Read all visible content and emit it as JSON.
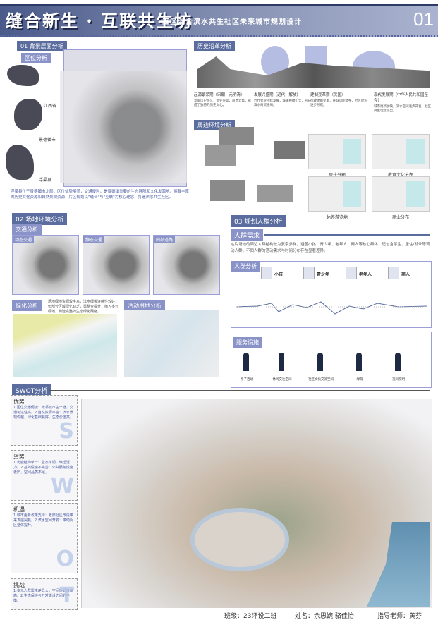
{
  "header": {
    "title": "缝合新生 · 互联共生坊",
    "subtitle": "五区混合滨水共生社区未来城市规划设计",
    "page_number": "01"
  },
  "section1": {
    "label": "01 背景层面分析",
    "location_label": "区位分析",
    "places": [
      "江西省",
      "景德镇市",
      "浮梁县"
    ],
    "description": "浮梁县位于景德镇市北部，区位优势明显，交通便利，是景德镇重要的生态屏障和文化发源地，拥有丰富的历史文化资源和自然景观资源，片区规划以\"缝合\"与\"互联\"为核心理念，打造滨水共生社区。"
  },
  "history": {
    "label": "历史沿革分析",
    "eras": [
      {
        "title": "起源繁荣期（宋朝—元明清）",
        "text": "浮梁历史悠久，瓷业兴盛，商贾云集，形成了独特的历史文化。"
      },
      {
        "title": "发展兴盛期（近代—解放）",
        "text": "近代瓷业持续发展，城镇规模扩大，形成滨水商贸格局。"
      },
      {
        "title": "建制变革期（民国）",
        "text": "行政建制变革，县城功能调整，社区结构逐步形成。"
      },
      {
        "title": "现代发展期（中华人民共和国至今）",
        "text": "城市更新加快，滨水空间逐步开发，社区共生理念提出。"
      }
    ]
  },
  "surroundings": {
    "label": "周边环境分析",
    "maps": [
      "居住分布",
      "教育文化分布",
      "休养游览地",
      "商业分布"
    ]
  },
  "section2": {
    "label": "02 场地环境分析",
    "traffic_label": "交通分析",
    "traffic_maps": [
      "动态交通",
      "静态交通",
      "内部道路"
    ],
    "green_label": "绿化分析",
    "green_text": "场地绿地资源较丰富，滨水绿带连续性较好，但部分区域绿化缺乏，需整合提升，植入多元绿地，构建完整的生态绿化网络。",
    "activity_label": "活动用地分析"
  },
  "section3": {
    "label": "03 规划人群分析",
    "needs_label": "人群需求",
    "needs_text": "这片场地的周边人群结构较为复杂多样，涵盖小孩、青少年、老年人、商人等核心群体，还包含学生、居住/就业等流动人群，不同人群的活动需求与时间分布存在显著差异。",
    "analysis_label": "人群分析",
    "groups": [
      "小孩",
      "青少年",
      "老年人",
      "商人"
    ],
    "facilities_label": "服务设施",
    "facilities": [
      "亲子活动",
      "休闲交往空间",
      "社区文化交流空间",
      "绿荫",
      "夜间照明"
    ]
  },
  "swot": {
    "label": "SWOT分析",
    "items": [
      {
        "title": "优势",
        "letter": "S",
        "text": "1.区位交通便捷：毗邻城市主干道，交通可达性高。2.自然资源丰富：滨水景观优越，绿化基础良好，生态价值高。"
      },
      {
        "title": "劣势",
        "letter": "W",
        "text": "1.功能结构单一：业态单调，缺乏活力。2.基础设施不完善：公共服务设施老旧，空间品质不足。"
      },
      {
        "title": "机遇",
        "letter": "O",
        "text": "1.城市更新政策支持：老旧社区改造带来发展契机。2.滨水空间开发：带动片区整体提升。"
      },
      {
        "title": "挑战",
        "letter": "T",
        "text": "1.多元人群需求差异大，空间协调难度高。2.生态保护与开发建设之间的平衡。"
      }
    ]
  },
  "credits": {
    "class": "班级：23环设二班",
    "names": "姓名：余思婉 骆佳怡",
    "advisor": "指导老师：黄芬"
  },
  "colors": {
    "accent": "#5a6d9e",
    "light_accent": "#8a93c8",
    "border": "#9c9ed8"
  }
}
